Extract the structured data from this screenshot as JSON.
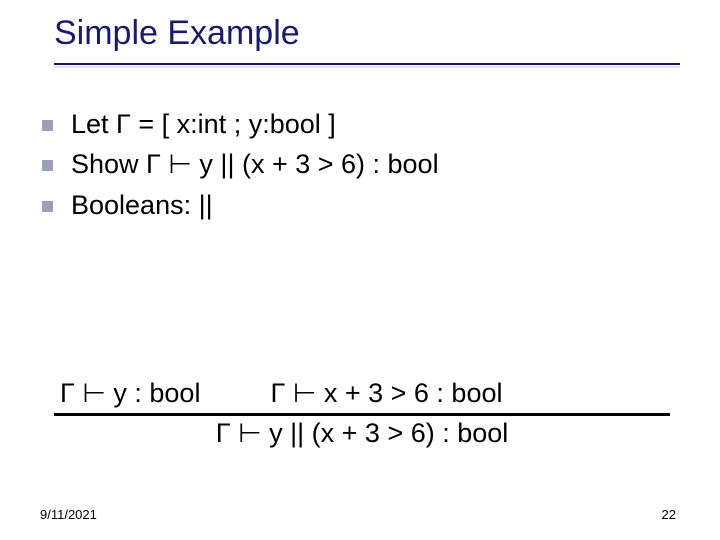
{
  "title": "Simple Example",
  "bullets": [
    "Let Γ = [ x:int ; y:bool ]",
    "Show Γ ⊢ y || (x + 3 > 6) : bool",
    "Booleans: ||"
  ],
  "derivation": {
    "premise_left": "Γ ⊢ y : bool",
    "premise_right": "Γ ⊢ x + 3 > 6 : bool",
    "conclusion": "Γ ⊢ y || (x + 3 > 6) : bool"
  },
  "footer": {
    "date": "9/11/2021",
    "page": "22"
  },
  "colors": {
    "title_color": "#1a1a6a",
    "bullet_marker": "#9aa0b8",
    "text": "#000000",
    "background": "#ffffff",
    "rule_line": "#000000"
  },
  "fonts": {
    "title_size_pt": 26,
    "body_size_pt": 20,
    "footer_size_pt": 10
  }
}
